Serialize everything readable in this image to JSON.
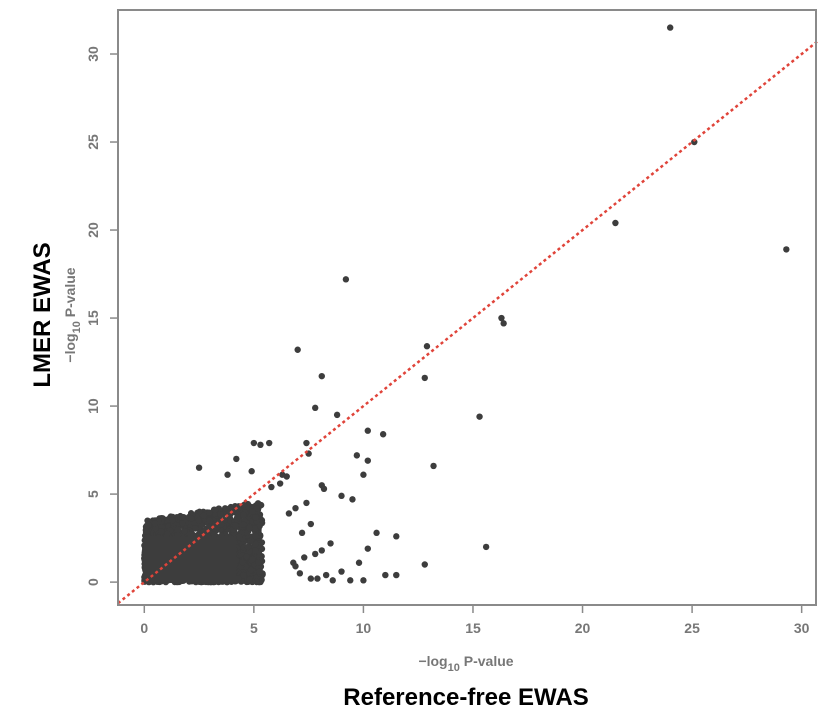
{
  "chart_data": {
    "type": "scatter",
    "title": "",
    "xlabel": "Reference-free EWAS",
    "ylabel": "LMER EWAS",
    "x_sublabel": {
      "prefix": "−log",
      "subscript": "10",
      "suffix": " P-value"
    },
    "y_sublabel": {
      "prefix": "−log",
      "subscript": "10",
      "suffix": " P-value"
    },
    "xlim": [
      -1.2,
      30.7
    ],
    "ylim": [
      -1.3,
      32.5
    ],
    "x_ticks": [
      "0",
      "5",
      "10",
      "15",
      "20",
      "25",
      "30"
    ],
    "y_ticks": [
      "0",
      "5",
      "10",
      "15",
      "20",
      "25",
      "30"
    ],
    "grid": false,
    "reference_line": {
      "type": "identity",
      "style": "dotted",
      "color": "#e0443a"
    },
    "point_color": "#3d3d3d",
    "dense_cluster": {
      "x_range": [
        0,
        5.5
      ],
      "y_range": [
        0,
        4.5
      ],
      "description": "tens of thousands of overlapping points near origin"
    },
    "points": [
      [
        24.0,
        31.5
      ],
      [
        25.1,
        25.0
      ],
      [
        21.5,
        20.4
      ],
      [
        29.3,
        18.9
      ],
      [
        9.2,
        17.2
      ],
      [
        16.3,
        15.0
      ],
      [
        16.4,
        14.7
      ],
      [
        12.9,
        13.4
      ],
      [
        12.8,
        11.6
      ],
      [
        7.0,
        13.2
      ],
      [
        8.1,
        11.7
      ],
      [
        7.8,
        9.9
      ],
      [
        8.8,
        9.5
      ],
      [
        15.3,
        9.4
      ],
      [
        10.2,
        8.6
      ],
      [
        10.9,
        8.4
      ],
      [
        5.0,
        7.9
      ],
      [
        5.3,
        7.8
      ],
      [
        5.7,
        7.9
      ],
      [
        7.4,
        7.9
      ],
      [
        7.5,
        7.3
      ],
      [
        9.7,
        7.2
      ],
      [
        10.2,
        6.9
      ],
      [
        10.0,
        6.1
      ],
      [
        13.2,
        6.6
      ],
      [
        8.1,
        5.5
      ],
      [
        8.2,
        5.3
      ],
      [
        9.0,
        4.9
      ],
      [
        9.5,
        4.7
      ],
      [
        11.5,
        2.6
      ],
      [
        10.6,
        2.8
      ],
      [
        10.2,
        1.9
      ],
      [
        11.5,
        0.4
      ],
      [
        12.8,
        1.0
      ],
      [
        15.6,
        2.0
      ],
      [
        11.0,
        0.4
      ],
      [
        10.0,
        0.1
      ],
      [
        9.8,
        1.1
      ],
      [
        9.4,
        0.1
      ],
      [
        9.0,
        0.6
      ],
      [
        8.6,
        0.1
      ],
      [
        8.3,
        0.4
      ],
      [
        7.9,
        0.2
      ],
      [
        7.6,
        0.2
      ],
      [
        6.5,
        6.0
      ],
      [
        6.3,
        6.1
      ],
      [
        4.9,
        6.3
      ],
      [
        2.5,
        6.5
      ],
      [
        4.2,
        7.0
      ],
      [
        3.8,
        6.1
      ],
      [
        7.4,
        4.5
      ],
      [
        6.9,
        4.2
      ],
      [
        6.6,
        3.9
      ],
      [
        8.5,
        2.2
      ],
      [
        7.8,
        1.6
      ],
      [
        7.2,
        2.8
      ],
      [
        6.8,
        1.1
      ],
      [
        7.6,
        3.3
      ],
      [
        6.2,
        5.6
      ],
      [
        5.8,
        5.4
      ],
      [
        7.1,
        0.5
      ],
      [
        6.9,
        0.9
      ],
      [
        8.1,
        1.8
      ],
      [
        7.3,
        1.4
      ]
    ]
  }
}
